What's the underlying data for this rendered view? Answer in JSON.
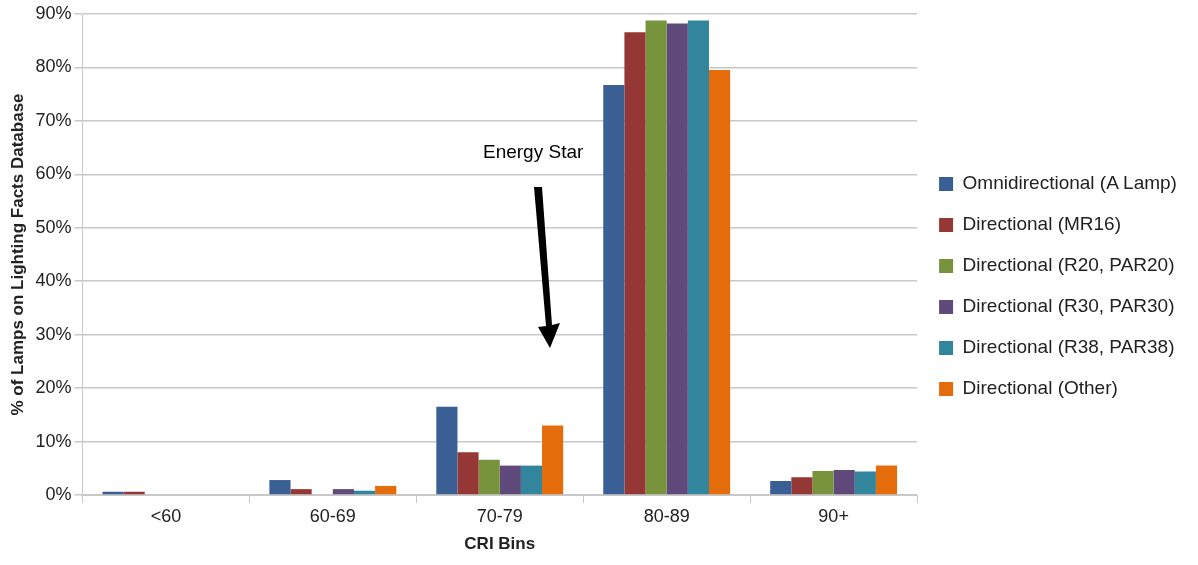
{
  "chart_data": {
    "type": "bar",
    "xlabel": "CRI Bins",
    "ylabel": "% of Lamps on Lighting Facts Database",
    "categories": [
      "<60",
      "60-69",
      "70-79",
      "80-89",
      "90+"
    ],
    "series": [
      {
        "name": "Omnidirectional (A Lamp)",
        "color": "#3a5f94",
        "values": [
          0.6,
          2.8,
          16.5,
          76.7,
          2.6
        ]
      },
      {
        "name": "Directional (MR16)",
        "color": "#953735",
        "values": [
          0.6,
          1.1,
          8,
          86.6,
          3.3
        ]
      },
      {
        "name": "Directional (R20, PAR20)",
        "color": "#77933c",
        "values": [
          0,
          0,
          6.6,
          88.8,
          4.5
        ]
      },
      {
        "name": "Directional (R30, PAR30)",
        "color": "#604a7b",
        "values": [
          0,
          1.1,
          5.5,
          88.2,
          4.7
        ]
      },
      {
        "name": "Directional (R38, PAR38)",
        "color": "#31859c",
        "values": [
          0,
          0.8,
          5.5,
          88.8,
          4.4
        ]
      },
      {
        "name": "Directional (Other)",
        "color": "#e46c0a",
        "values": [
          0,
          1.7,
          13,
          79.5,
          5.5
        ]
      }
    ],
    "ylim": [
      0,
      90
    ],
    "yticks": [
      {
        "value": 0,
        "label": "0%"
      },
      {
        "value": 10,
        "label": "10%"
      },
      {
        "value": 20,
        "label": "20%"
      },
      {
        "value": 30,
        "label": "30%"
      },
      {
        "value": 40,
        "label": "40%"
      },
      {
        "value": 50,
        "label": "50%"
      },
      {
        "value": 60,
        "label": "60%"
      },
      {
        "value": 70,
        "label": "70%"
      },
      {
        "value": 80,
        "label": "80%"
      },
      {
        "value": 90,
        "label": "90%"
      }
    ],
    "grid": "y",
    "legend": "right",
    "annotations": [
      "Energy Star"
    ]
  }
}
